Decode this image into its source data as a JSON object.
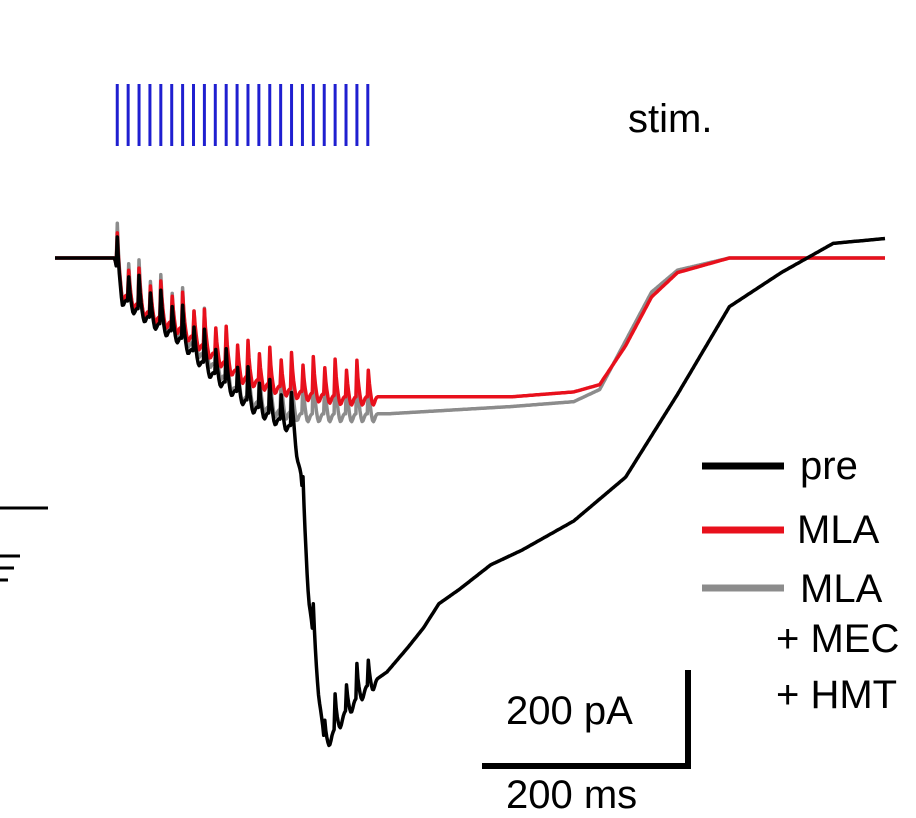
{
  "chart_data": {
    "type": "line",
    "title": "",
    "xlabel": "",
    "ylabel": "",
    "stimulus": {
      "label": "stim.",
      "color": "#1f1fd0",
      "pulse_count": 24,
      "interval_ms": 20,
      "first_pulse_ms": 120
    },
    "x_unit": "ms",
    "y_unit": "pA",
    "xlim": [
      0,
      1600
    ],
    "ylim": [
      -1000,
      150
    ],
    "series": [
      {
        "name": "pre",
        "color": "#000000",
        "x": [
          0,
          115,
          130,
          180,
          240,
          300,
          380,
          450,
          460,
          475,
          490,
          520,
          560,
          600,
          640,
          680,
          710,
          740,
          780,
          840,
          900,
          1000,
          1100,
          1200,
          1300,
          1400,
          1500,
          1600
        ],
        "values": [
          0,
          0,
          -80,
          -120,
          -160,
          -230,
          -300,
          -340,
          -350,
          -450,
          -700,
          -1000,
          -930,
          -880,
          -850,
          -800,
          -760,
          -710,
          -680,
          -630,
          -600,
          -540,
          -450,
          -280,
          -100,
          -30,
          30,
          40
        ]
      },
      {
        "name": "MLA",
        "color": "#e8101c",
        "x": [
          0,
          115,
          130,
          180,
          240,
          300,
          360,
          420,
          480,
          560,
          640,
          720,
          800,
          880,
          940,
          1000,
          1050,
          1100,
          1150,
          1200,
          1300,
          1400,
          1500,
          1600
        ],
        "values": [
          0,
          0,
          -70,
          -110,
          -140,
          -190,
          -240,
          -260,
          -275,
          -285,
          -285,
          -285,
          -285,
          -285,
          -280,
          -275,
          -260,
          -180,
          -80,
          -30,
          0,
          0,
          0,
          0
        ]
      },
      {
        "name": "MLA + MEC + HMT",
        "color": "#8c8c8c",
        "x": [
          0,
          115,
          130,
          180,
          240,
          300,
          360,
          420,
          480,
          560,
          640,
          720,
          800,
          880,
          940,
          1000,
          1050,
          1100,
          1150,
          1200,
          1300,
          1400,
          1500,
          1600
        ],
        "values": [
          0,
          0,
          -70,
          -115,
          -150,
          -210,
          -280,
          -310,
          -320,
          -320,
          -320,
          -315,
          -310,
          -305,
          -300,
          -295,
          -270,
          -170,
          -70,
          -25,
          0,
          0,
          0,
          0
        ]
      }
    ],
    "legend": {
      "placement": "right",
      "entries": [
        {
          "lines": [
            "pre"
          ]
        },
        {
          "lines": [
            "MLA"
          ]
        },
        {
          "lines": [
            "MLA",
            "+ MEC",
            "+ HMT"
          ]
        }
      ]
    },
    "scale_bar": {
      "y_label": "200 pA",
      "x_label": "200 ms",
      "y_value": 200,
      "x_value": 200
    }
  }
}
